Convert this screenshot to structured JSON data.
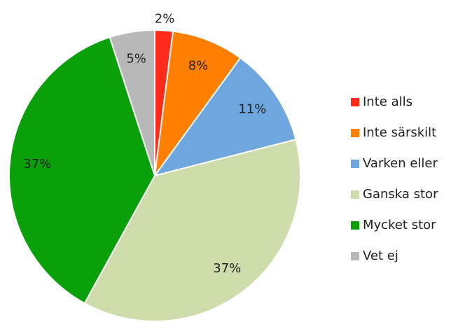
{
  "chart_data": {
    "type": "pie",
    "categories": [
      "Inte alls",
      "Inte särskilt",
      "Varken eller",
      "Ganska stor",
      "Mycket stor",
      "Vet ej"
    ],
    "values": [
      2,
      8,
      11,
      37,
      37,
      5
    ],
    "value_labels": [
      "2%",
      "8%",
      "11%",
      "37%",
      "37%",
      "5%"
    ],
    "colors": [
      "#ff2a1a",
      "#ff7f00",
      "#6ea6e0",
      "#cddcaa",
      "#0aa00a",
      "#b8b8b8"
    ],
    "legend": "right"
  }
}
